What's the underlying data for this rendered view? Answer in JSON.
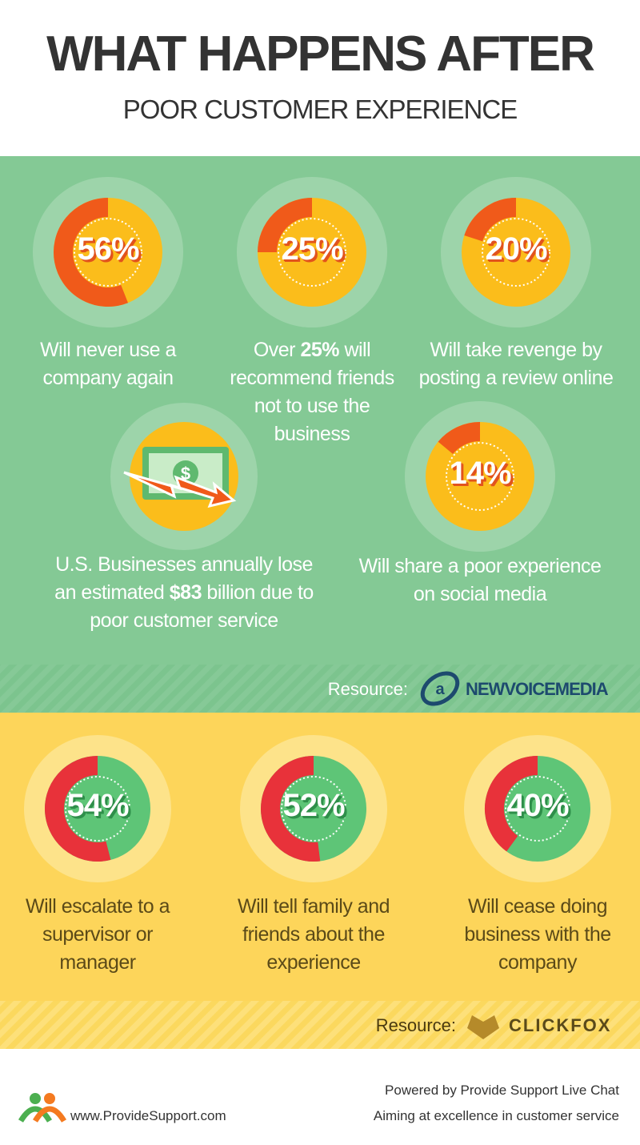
{
  "header": {
    "title": "WHAT HAPPENS AFTER",
    "subtitle": "POOR CUSTOMER EXPERIENCE"
  },
  "section1": {
    "stats": [
      {
        "value": 56,
        "label": "56%",
        "text_before": "Will never use a company again"
      },
      {
        "value": 25,
        "label": "25%",
        "text_before": "Over ",
        "text_bold": "25%",
        "text_after": " will recommend friends not to use the business"
      },
      {
        "value": 20,
        "label": "20%",
        "text_before": "Will take revenge by posting a review online"
      },
      {
        "value": 14,
        "label": "14%",
        "text_before": "Will share a poor experience on social media"
      }
    ],
    "money": {
      "text_before": "U.S. Businesses annually lose an estimated ",
      "text_bold": "$83",
      "text_after": " billion due to poor customer service"
    },
    "resource_label": "Resource:",
    "resource_name": "NEWVOICEMEDIA"
  },
  "section2": {
    "stats": [
      {
        "value": 54,
        "label": "54%",
        "text_before": "Will escalate to a supervisor or manager"
      },
      {
        "value": 52,
        "label": "52%",
        "text_before": "Will tell family and friends about the experience"
      },
      {
        "value": 40,
        "label": "40%",
        "text_before": "Will cease doing business with the company"
      }
    ],
    "resource_label": "Resource:",
    "resource_name": "CLICKFOX"
  },
  "footer": {
    "url": "www.ProvideSupport.com",
    "powered": "Powered by Provide Support Live Chat",
    "tagline": "Aiming at excellence in customer service"
  }
}
